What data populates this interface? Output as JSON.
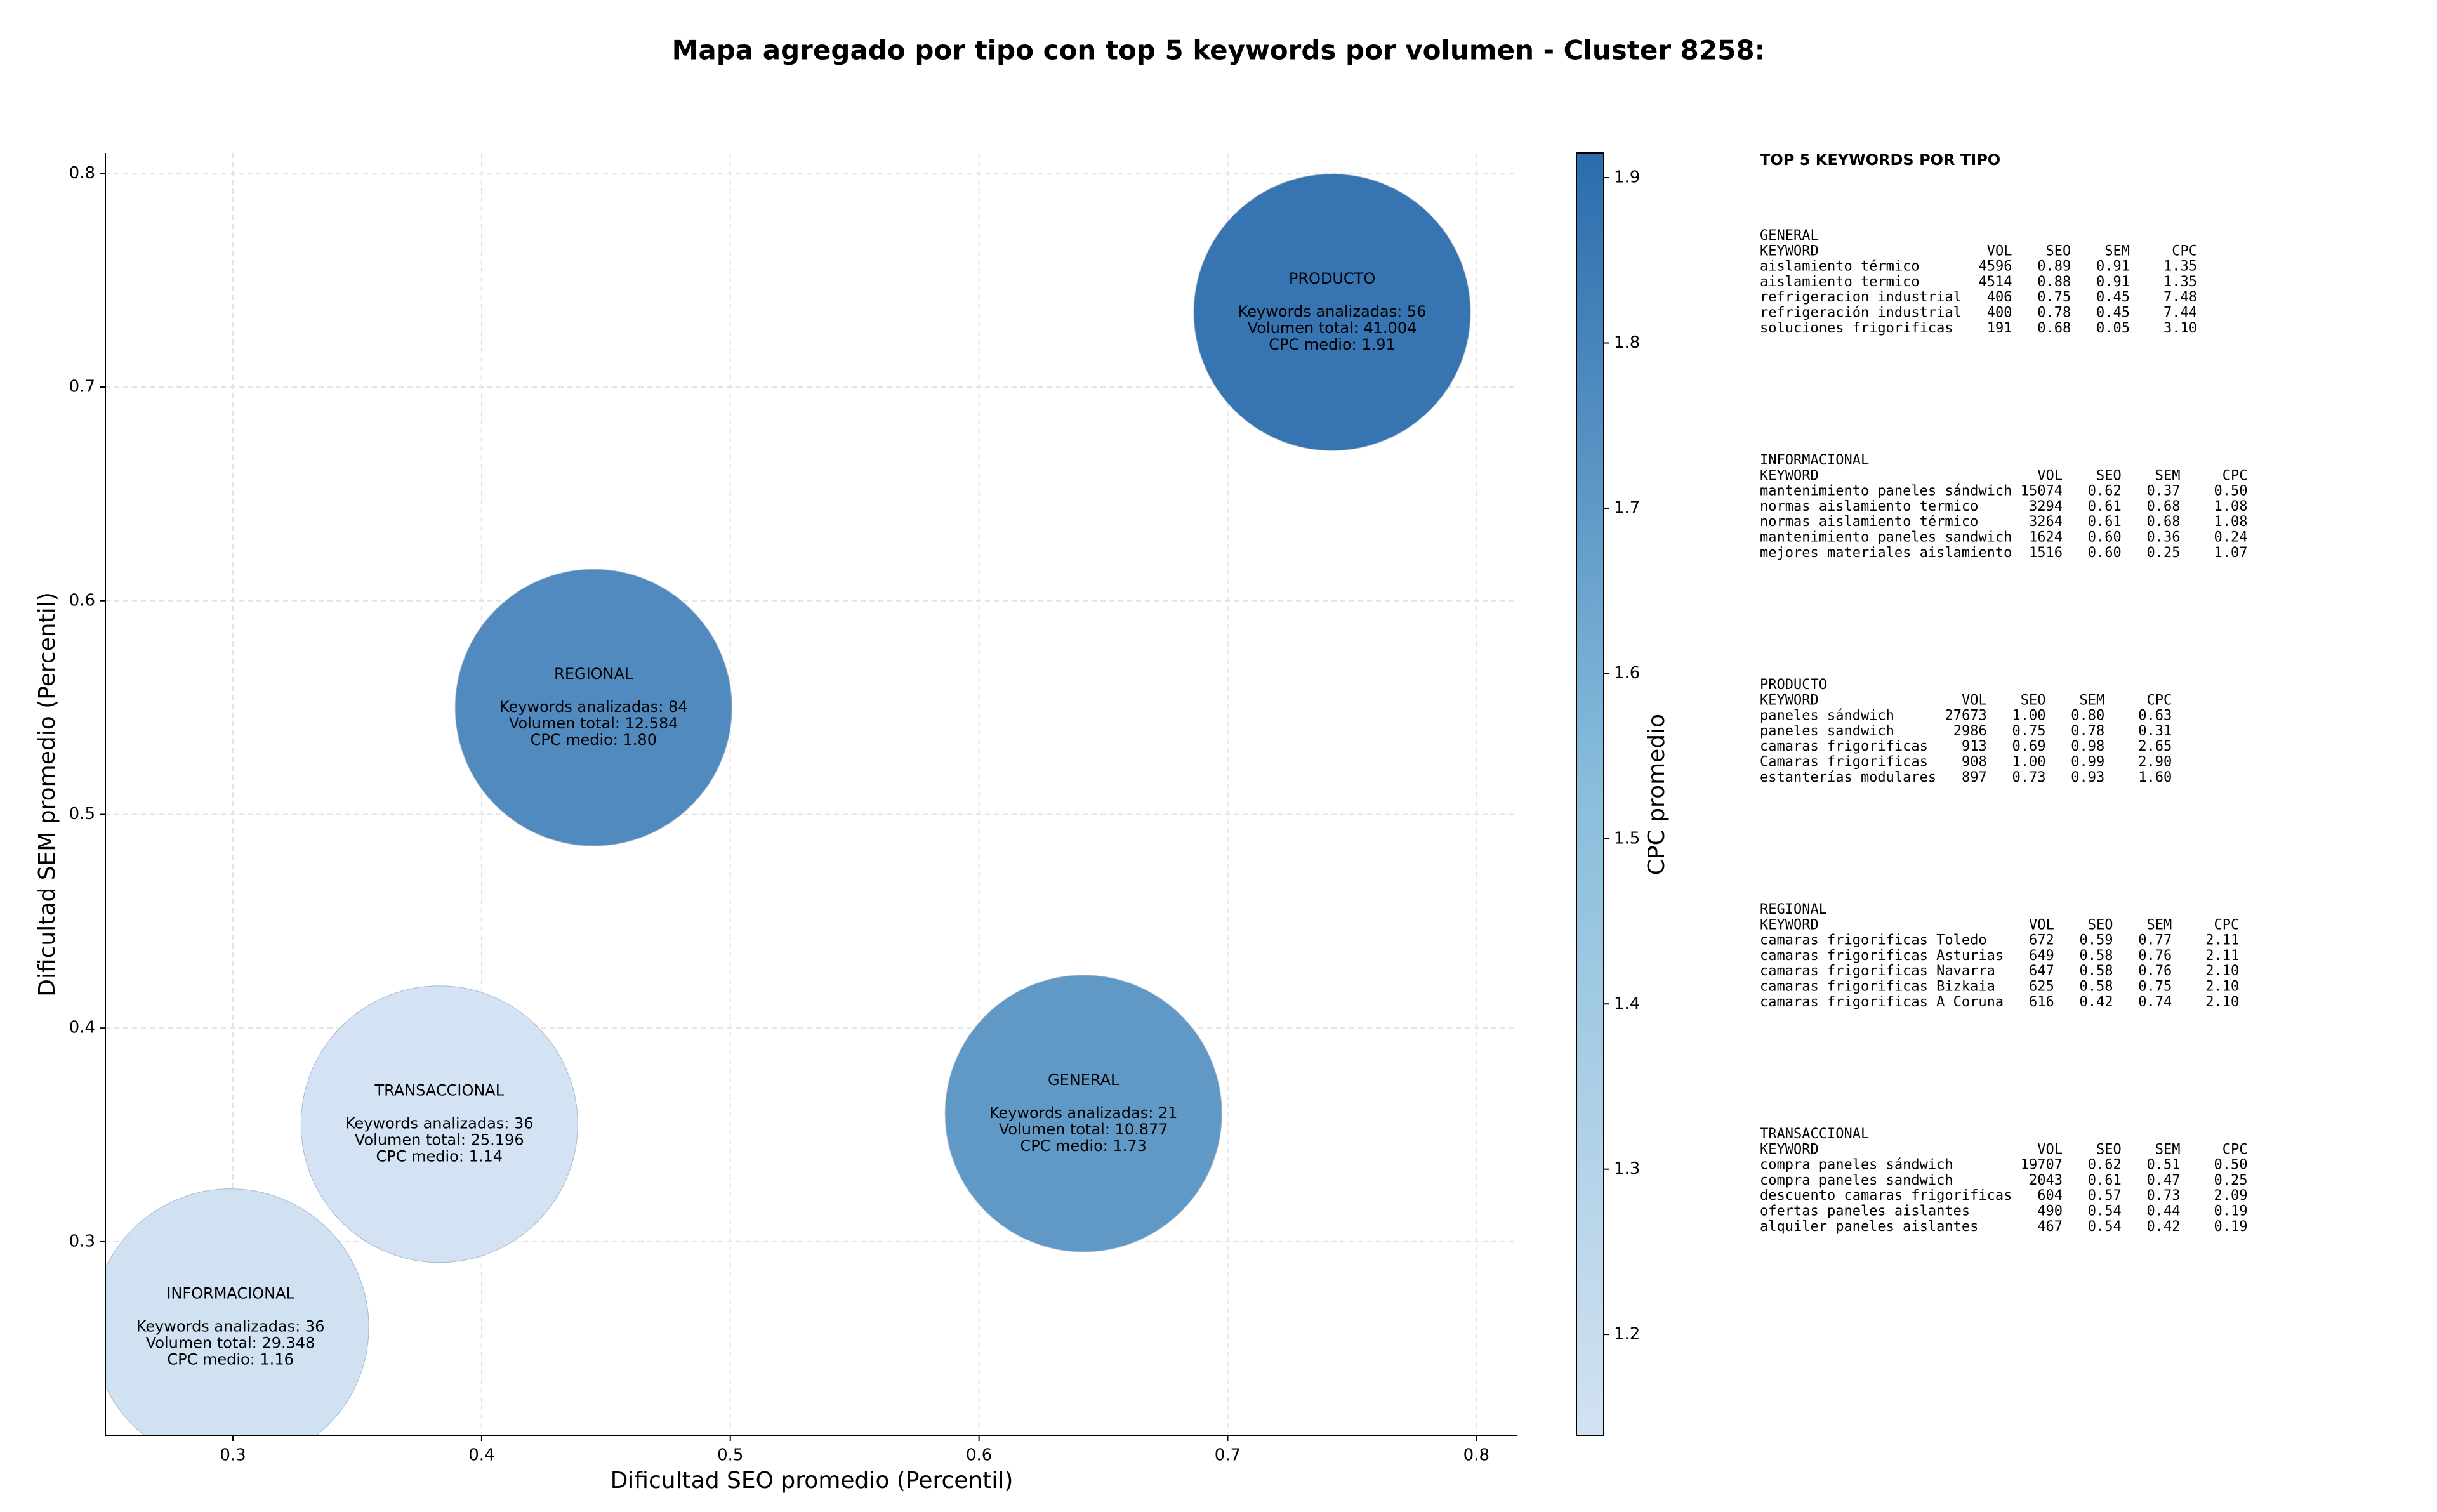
{
  "chart_data": {
    "type": "scatter",
    "title": "Mapa agregado por tipo con top 5 keywords por volumen - Cluster 8258:",
    "xlabel": "Dificultad SEO promedio (Percentil)",
    "ylabel": "Dificultad SEM promedio (Percentil)",
    "colorbar_label": "CPC promedio",
    "colormap": "Blues",
    "names": [
      "INFORMACIONAL",
      "TRANSACCIONAL",
      "REGIONAL",
      "GENERAL",
      "PRODUCTO"
    ],
    "x": [
      0.299,
      0.383,
      0.445,
      0.642,
      0.742
    ],
    "y": [
      0.26,
      0.355,
      0.55,
      0.36,
      0.735
    ],
    "cpc": [
      1.16,
      1.14,
      1.8,
      1.73,
      1.91
    ],
    "details": [
      [
        "Keywords analizadas: 36",
        "Volumen total: 29.348",
        "CPC medio: 1.16"
      ],
      [
        "Keywords analizadas: 36",
        "Volumen total: 25.196",
        "CPC medio: 1.14"
      ],
      [
        "Keywords analizadas: 84",
        "Volumen total: 12.584",
        "CPC medio: 1.80"
      ],
      [
        "Keywords analizadas: 21",
        "Volumen total: 10.877",
        "CPC medio: 1.73"
      ],
      [
        "Keywords analizadas: 56",
        "Volumen total: 41.004",
        "CPC medio: 1.91"
      ]
    ],
    "xlim": [
      0.2487,
      0.8165
    ],
    "ylim": [
      0.2094,
      0.8096
    ],
    "clim": [
      1.139,
      1.915
    ],
    "xticks": [
      0.3,
      0.4,
      0.5,
      0.6,
      0.7,
      0.8
    ],
    "yticks": [
      0.3,
      0.4,
      0.5,
      0.6,
      0.7,
      0.8
    ],
    "cticks": [
      1.2,
      1.3,
      1.4,
      1.5,
      1.6,
      1.7,
      1.8,
      1.9
    ],
    "grid": true
  },
  "keyword_tables": {
    "title": "TOP 5 KEYWORDS POR TIPO",
    "header": [
      "KEYWORD",
      "VOL",
      "SEO",
      "SEM",
      "CPC"
    ],
    "groups": [
      {
        "name": "GENERAL",
        "rows": [
          [
            "aislamiento térmico",
            "4596",
            "0.89",
            "0.91",
            "1.35"
          ],
          [
            "aislamiento termico",
            "4514",
            "0.88",
            "0.91",
            "1.35"
          ],
          [
            "refrigeracion industrial",
            "406",
            "0.75",
            "0.45",
            "7.48"
          ],
          [
            "refrigeración industrial",
            "400",
            "0.78",
            "0.45",
            "7.44"
          ],
          [
            "soluciones frigorificas",
            "191",
            "0.68",
            "0.05",
            "3.10"
          ]
        ]
      },
      {
        "name": "INFORMACIONAL",
        "rows": [
          [
            "mantenimiento paneles sándwich",
            "15074",
            "0.62",
            "0.37",
            "0.50"
          ],
          [
            "normas aislamiento termico",
            "3294",
            "0.61",
            "0.68",
            "1.08"
          ],
          [
            "normas aislamiento térmico",
            "3264",
            "0.61",
            "0.68",
            "1.08"
          ],
          [
            "mantenimiento paneles sandwich",
            "1624",
            "0.60",
            "0.36",
            "0.24"
          ],
          [
            "mejores materiales aislamiento",
            "1516",
            "0.60",
            "0.25",
            "1.07"
          ]
        ]
      },
      {
        "name": "PRODUCTO",
        "rows": [
          [
            "paneles sándwich",
            "27673",
            "1.00",
            "0.80",
            "0.63"
          ],
          [
            "paneles sandwich",
            "2986",
            "0.75",
            "0.78",
            "0.31"
          ],
          [
            "camaras frigorificas",
            "913",
            "0.69",
            "0.98",
            "2.65"
          ],
          [
            "Camaras frigorificas",
            "908",
            "1.00",
            "0.99",
            "2.90"
          ],
          [
            "estanterías modulares",
            "897",
            "0.73",
            "0.93",
            "1.60"
          ]
        ]
      },
      {
        "name": "REGIONAL",
        "rows": [
          [
            "camaras frigorificas Toledo",
            "672",
            "0.59",
            "0.77",
            "2.11"
          ],
          [
            "camaras frigorificas Asturias",
            "649",
            "0.58",
            "0.76",
            "2.11"
          ],
          [
            "camaras frigorificas Navarra",
            "647",
            "0.58",
            "0.76",
            "2.10"
          ],
          [
            "camaras frigorificas Bizkaia",
            "625",
            "0.58",
            "0.75",
            "2.10"
          ],
          [
            "camaras frigorificas A Coruna",
            "616",
            "0.42",
            "0.74",
            "2.10"
          ]
        ]
      },
      {
        "name": "TRANSACCIONAL",
        "rows": [
          [
            "compra paneles sándwich",
            "19707",
            "0.62",
            "0.51",
            "0.50"
          ],
          [
            "compra paneles sandwich",
            "2043",
            "0.61",
            "0.47",
            "0.25"
          ],
          [
            "descuento camaras frigorificas",
            "604",
            "0.57",
            "0.73",
            "2.09"
          ],
          [
            "ofertas paneles aislantes",
            "490",
            "0.54",
            "0.44",
            "0.19"
          ],
          [
            "alquiler paneles aislantes",
            "467",
            "0.54",
            "0.42",
            "0.19"
          ]
        ]
      }
    ]
  }
}
